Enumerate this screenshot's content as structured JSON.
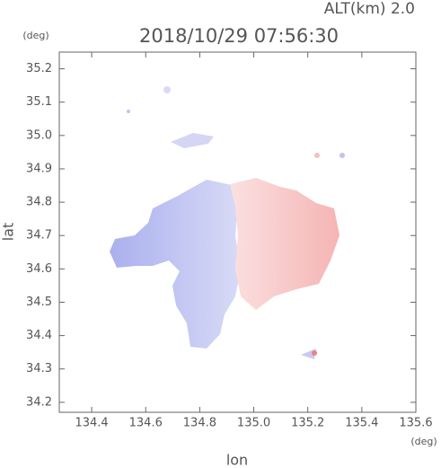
{
  "chart_data": {
    "type": "map",
    "title": "2018/10/29 07:56:30",
    "subtitle": "ALT(km) 2.0",
    "x_label": "lon",
    "y_label": "lat",
    "x_unit": "(deg)",
    "y_unit": "(deg)",
    "xlim": [
      134.28,
      135.6
    ],
    "ylim": [
      34.17,
      35.25
    ],
    "xticks": [
      134.4,
      134.6,
      134.8,
      {
        "value": 135,
        "label": "135.0"
      },
      135.2,
      135.4,
      135.6
    ],
    "yticks": [
      34.2,
      34.3,
      34.4,
      34.5,
      34.6,
      34.7,
      34.8,
      34.9,
      {
        "value": 35,
        "label": "35.0"
      },
      35.1,
      35.2
    ]
  }
}
